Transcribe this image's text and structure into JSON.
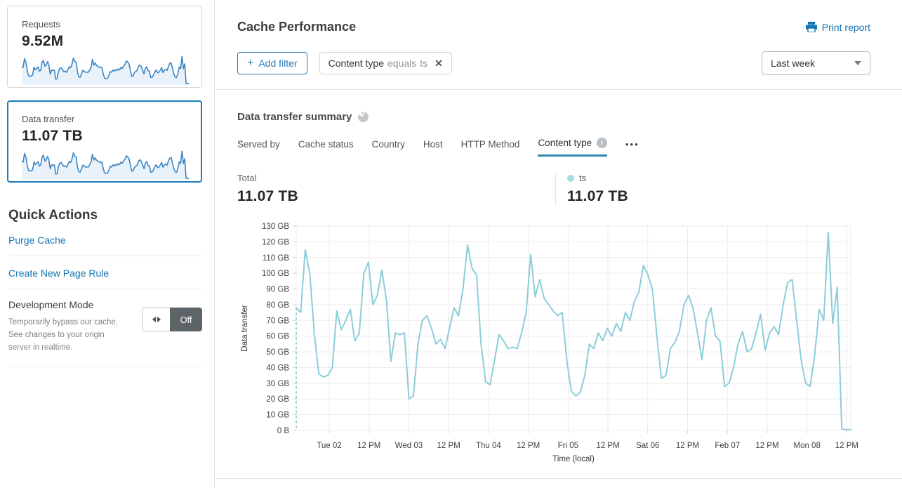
{
  "sidebar": {
    "cards": [
      {
        "label": "Requests",
        "value": "9.52M",
        "selected": false
      },
      {
        "label": "Data transfer",
        "value": "11.07 TB",
        "selected": true
      }
    ],
    "quick_actions": {
      "title": "Quick Actions",
      "links": [
        "Purge Cache",
        "Create New Page Rule"
      ],
      "dev_mode": {
        "title": "Development Mode",
        "description": "Temporarily bypass our cache. See changes to your origin server in realtime.",
        "toggle_label": "Off"
      }
    }
  },
  "header": {
    "title": "Cache Performance",
    "print_label": "Print report"
  },
  "filters": {
    "add_label": "Add filter",
    "chip": {
      "field": "Content type",
      "operator": "equals",
      "value": "ts"
    },
    "time_range": "Last week"
  },
  "summary": {
    "title": "Data transfer summary",
    "tabs": [
      {
        "label": "Served by",
        "active": false
      },
      {
        "label": "Cache status",
        "active": false
      },
      {
        "label": "Country",
        "active": false
      },
      {
        "label": "Host",
        "active": false
      },
      {
        "label": "HTTP Method",
        "active": false
      },
      {
        "label": "Content type",
        "active": true,
        "info": true
      }
    ],
    "overflow_label": "•••",
    "totals": {
      "total_label": "Total",
      "total_value": "11.07 TB",
      "series_label": "ts",
      "series_value": "11.07 TB"
    }
  },
  "chart_data": {
    "type": "line",
    "title": "Data transfer summary",
    "xlabel": "Time (local)",
    "ylabel": "Data transfer",
    "ylim": [
      0,
      130
    ],
    "grid": true,
    "y_ticks": [
      "0 B",
      "10 GB",
      "20 GB",
      "30 GB",
      "40 GB",
      "50 GB",
      "60 GB",
      "70 GB",
      "80 GB",
      "90 GB",
      "100 GB",
      "110 GB",
      "120 GB",
      "130 GB"
    ],
    "x_ticks": [
      "Tue 02",
      "12 PM",
      "Wed 03",
      "12 PM",
      "Thu 04",
      "12 PM",
      "Fri 05",
      "12 PM",
      "Sat 06",
      "12 PM",
      "Feb 07",
      "12 PM",
      "Mon 08",
      "12 PM"
    ],
    "x_tick_start_frac": 0.0595,
    "x_tick_step_frac": 0.0718,
    "series": [
      {
        "name": "ts",
        "unit": "GB",
        "values": [
          78,
          75,
          115,
          100,
          62,
          36,
          34,
          35,
          40,
          76,
          64,
          70,
          77,
          57,
          62,
          100,
          107,
          80,
          86,
          102,
          83,
          44,
          62,
          61,
          62,
          20,
          22,
          55,
          70,
          73,
          65,
          55,
          58,
          52,
          65,
          78,
          73,
          90,
          118,
          103,
          99,
          55,
          31,
          29,
          45,
          61,
          57,
          52,
          53,
          52,
          62,
          75,
          112,
          85,
          96,
          84,
          80,
          76,
          73,
          75,
          45,
          25,
          22,
          24,
          35,
          55,
          52,
          62,
          57,
          65,
          60,
          68,
          63,
          75,
          70,
          82,
          88,
          105,
          99,
          90,
          60,
          33,
          35,
          52,
          56,
          63,
          80,
          86,
          78,
          62,
          45,
          70,
          78,
          60,
          57,
          28,
          30,
          40,
          55,
          63,
          50,
          52,
          62,
          74,
          51,
          62,
          66,
          61,
          80,
          94,
          96,
          70,
          45,
          30,
          28,
          48,
          77,
          70,
          126,
          68,
          91,
          1,
          0.5,
          0.5
        ]
      }
    ]
  },
  "colors": {
    "link_blue": "#1574b2",
    "chart_line": "#8ccdda",
    "legend_dot": "#a5dce6",
    "sparkline_stroke": "#3f86c4",
    "sparkline_fill": "#e9f1fa",
    "selected_card_border": "#1b7dbb",
    "active_tab_underline": "#3386ad",
    "toggle_off_bg": "#5d6468"
  }
}
